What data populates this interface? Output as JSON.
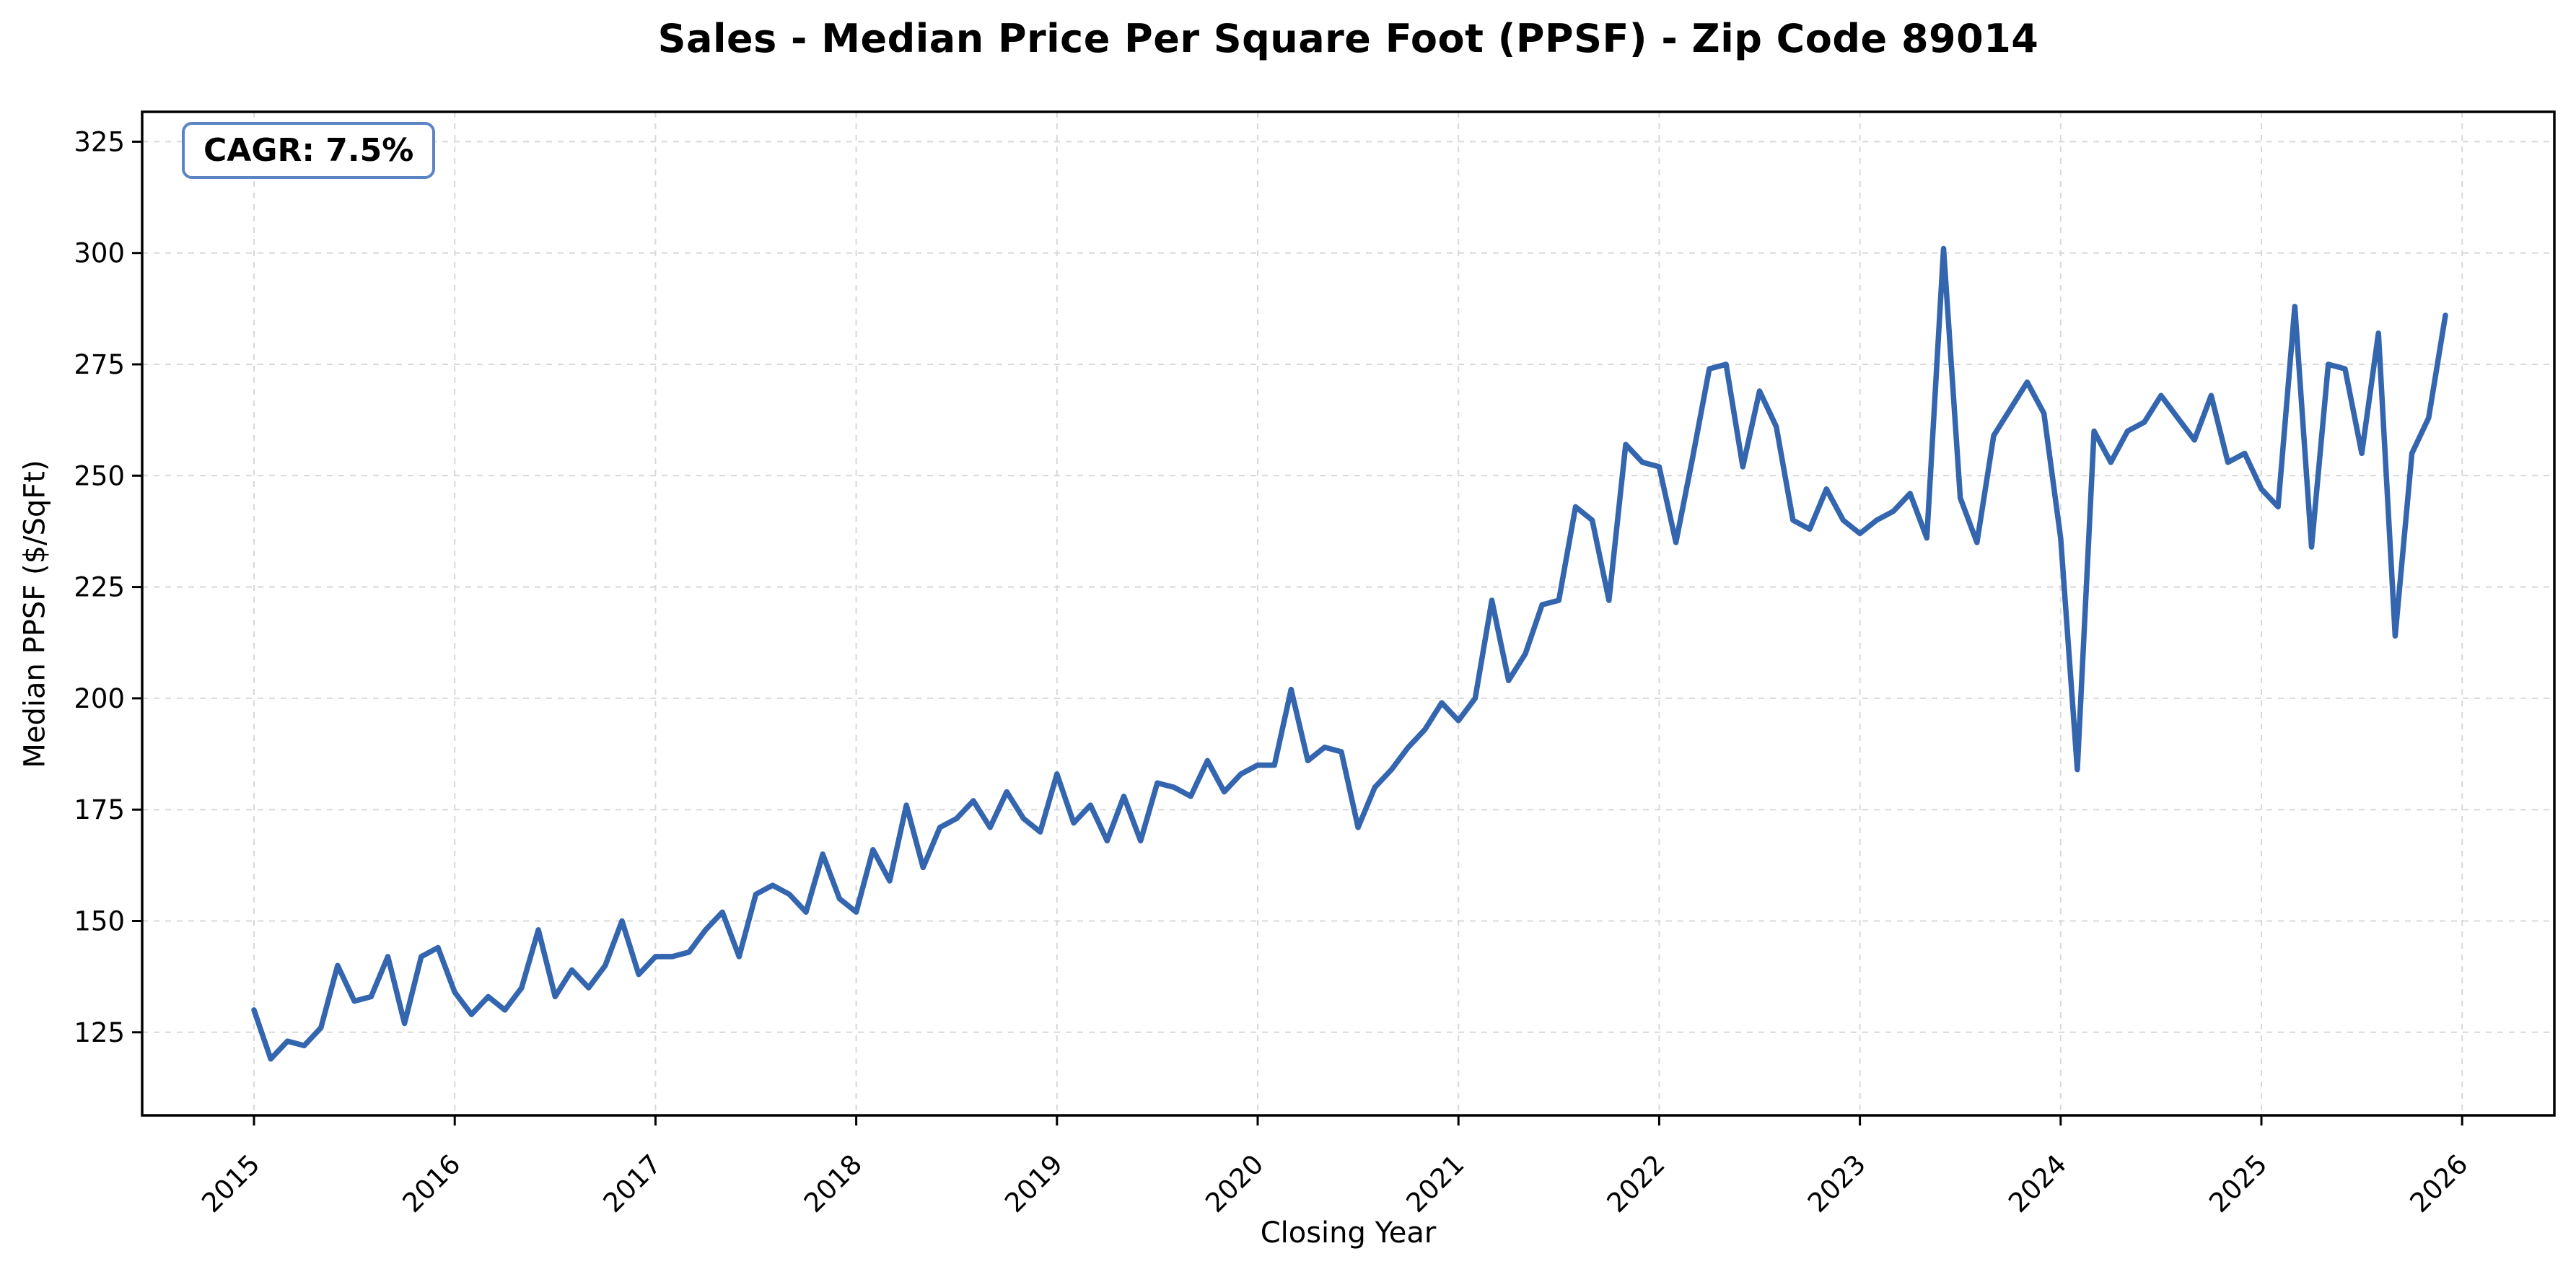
{
  "chart_data": {
    "type": "line",
    "title": "Sales - Median Price Per Square Foot (PPSF) - Zip Code 89014",
    "xlabel": "Closing Year",
    "ylabel": "Median PPSF ($/SqFt)",
    "annotation_label": "CAGR: 7.5%",
    "x_tick_labels": [
      2015,
      2016,
      2017,
      2018,
      2019,
      2020,
      2021,
      2022,
      2023,
      2024,
      2025,
      2026
    ],
    "y_tick_labels": [
      125,
      150,
      175,
      200,
      225,
      250,
      275,
      300,
      325
    ],
    "ylim": [
      106,
      332
    ],
    "xlim": [
      "2014-06",
      "2026-06"
    ],
    "grid": true,
    "grid_style": "dashed",
    "legend": "none",
    "colors": {
      "line": "#3465af",
      "grid": "#d8d8d8",
      "spine": "#000000",
      "annotation_border": "#5b84c4",
      "text": "#000000",
      "background": "#ffffff"
    },
    "series": [
      {
        "name": "Median PPSF",
        "frequency": "monthly",
        "start_month": "2015-01",
        "end_month": "2025-12",
        "values": [
          130,
          119,
          123,
          122,
          126,
          140,
          132,
          133,
          142,
          127,
          142,
          144,
          134,
          129,
          133,
          130,
          135,
          148,
          133,
          139,
          135,
          140,
          150,
          138,
          142,
          142,
          143,
          148,
          152,
          142,
          156,
          158,
          156,
          152,
          165,
          155,
          152,
          166,
          159,
          176,
          162,
          171,
          173,
          177,
          171,
          179,
          173,
          170,
          183,
          172,
          176,
          168,
          178,
          168,
          181,
          180,
          178,
          186,
          179,
          183,
          185,
          185,
          202,
          186,
          189,
          188,
          171,
          180,
          184,
          189,
          193,
          199,
          195,
          200,
          222,
          204,
          210,
          221,
          222,
          243,
          240,
          222,
          257,
          253,
          252,
          235,
          254,
          274,
          275,
          252,
          269,
          261,
          240,
          238,
          247,
          240,
          237,
          240,
          242,
          246,
          236,
          301,
          245,
          235,
          259,
          265,
          271,
          264,
          236,
          184,
          260,
          253,
          260,
          262,
          268,
          263,
          258,
          268,
          253,
          255,
          247,
          243,
          288,
          234,
          275,
          274,
          255,
          282,
          214,
          255,
          263,
          286
        ]
      }
    ]
  }
}
